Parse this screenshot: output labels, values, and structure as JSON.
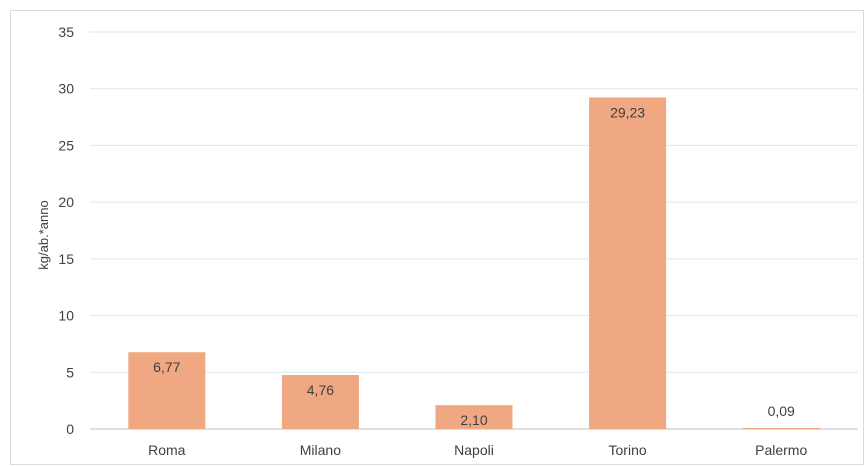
{
  "chart_data": {
    "type": "bar",
    "title": "",
    "xlabel": "",
    "ylabel": "kg/ab.*anno",
    "categories": [
      "Roma",
      "Milano",
      "Napoli",
      "Torino",
      "Palermo"
    ],
    "values": [
      6.77,
      4.76,
      2.1,
      29.23,
      0.09
    ],
    "data_labels": [
      "6,77",
      "4,76",
      "2,10",
      "29,23",
      "0,09"
    ],
    "ylim": [
      0,
      35
    ],
    "yticks": [
      0,
      5,
      10,
      15,
      20,
      25,
      30,
      35
    ],
    "grid": true,
    "legend": "none",
    "colors": {
      "bar": "#f0a882",
      "grid": "#dbe7f1",
      "axis": "#bfbfbf",
      "text": "#404040"
    }
  }
}
